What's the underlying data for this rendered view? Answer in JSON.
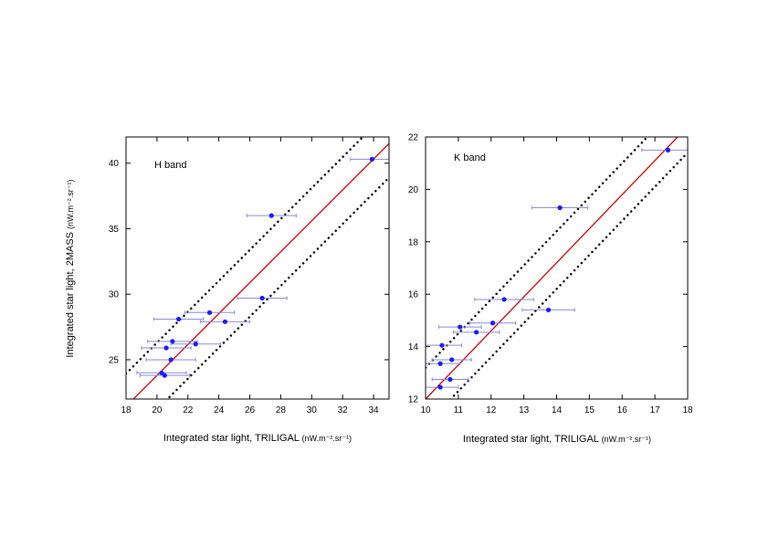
{
  "chart_data": [
    {
      "type": "scatter",
      "title": "",
      "annotation": "H band",
      "xlabel": "Integrated star light, TRILIGAL",
      "xunit": "(nW.m⁻².sr⁻¹)",
      "ylabel": "Integrated star light, 2MASS",
      "yunit": "(nW.m⁻².sr⁻¹)",
      "xlim": [
        18,
        35
      ],
      "ylim": [
        22,
        42
      ],
      "xticks": [
        18,
        20,
        22,
        24,
        26,
        28,
        30,
        32,
        34
      ],
      "yticks": [
        25,
        30,
        35,
        40
      ],
      "points": [
        {
          "x": 33.9,
          "y": 40.3,
          "xerr": 1.4
        },
        {
          "x": 27.4,
          "y": 36.0,
          "xerr": 1.6
        },
        {
          "x": 26.8,
          "y": 29.7,
          "xerr": 1.6
        },
        {
          "x": 23.4,
          "y": 28.6,
          "xerr": 1.6
        },
        {
          "x": 24.4,
          "y": 27.9,
          "xerr": 1.6
        },
        {
          "x": 21.4,
          "y": 28.1,
          "xerr": 1.6
        },
        {
          "x": 21.0,
          "y": 26.4,
          "xerr": 1.6
        },
        {
          "x": 22.5,
          "y": 26.2,
          "xerr": 1.6
        },
        {
          "x": 20.6,
          "y": 25.9,
          "xerr": 1.6
        },
        {
          "x": 20.9,
          "y": 25.0,
          "xerr": 1.6
        },
        {
          "x": 20.3,
          "y": 24.0,
          "xerr": 1.6
        },
        {
          "x": 20.5,
          "y": 23.8,
          "xerr": 1.6
        }
      ],
      "fit_line": {
        "slope": 1.18,
        "intercept": 0.2,
        "color": "#cc0000"
      },
      "bound_lines": [
        {
          "slope": 1.18,
          "intercept": 2.7,
          "style": "dotted"
        },
        {
          "slope": 1.18,
          "intercept": -2.4,
          "style": "dotted"
        }
      ],
      "point_color": "#1a1aff",
      "error_color": "#8888dd"
    },
    {
      "type": "scatter",
      "title": "",
      "annotation": "K band",
      "xlabel": "Integrated star light, TRILIGAL",
      "xunit": "(nW.m⁻².sr⁻¹)",
      "ylabel": "",
      "yunit": "",
      "xlim": [
        10,
        18
      ],
      "ylim": [
        12,
        22
      ],
      "xticks": [
        10,
        11,
        12,
        13,
        14,
        15,
        16,
        17,
        18
      ],
      "yticks": [
        12,
        14,
        16,
        18,
        20,
        22
      ],
      "points": [
        {
          "x": 17.4,
          "y": 21.5,
          "xerr": 0.8
        },
        {
          "x": 14.1,
          "y": 19.3,
          "xerr": 0.85
        },
        {
          "x": 12.4,
          "y": 15.8,
          "xerr": 0.9
        },
        {
          "x": 13.75,
          "y": 15.4,
          "xerr": 0.8
        },
        {
          "x": 11.05,
          "y": 14.75,
          "xerr": 0.65
        },
        {
          "x": 12.05,
          "y": 14.9,
          "xerr": 0.7
        },
        {
          "x": 11.55,
          "y": 14.55,
          "xerr": 0.7
        },
        {
          "x": 10.5,
          "y": 14.05,
          "xerr": 0.6
        },
        {
          "x": 10.8,
          "y": 13.5,
          "xerr": 0.6
        },
        {
          "x": 10.45,
          "y": 13.35,
          "xerr": 0.6
        },
        {
          "x": 10.75,
          "y": 12.75,
          "xerr": 0.55
        },
        {
          "x": 10.45,
          "y": 12.45,
          "xerr": 0.55
        }
      ],
      "fit_line": {
        "slope": 1.3,
        "intercept": -1.0,
        "color": "#cc0000"
      },
      "bound_lines": [
        {
          "slope": 1.3,
          "intercept": 0.2,
          "style": "dotted"
        },
        {
          "slope": 1.3,
          "intercept": -2.0,
          "style": "dotted"
        }
      ],
      "point_color": "#1a1aff",
      "error_color": "#8888dd"
    }
  ]
}
